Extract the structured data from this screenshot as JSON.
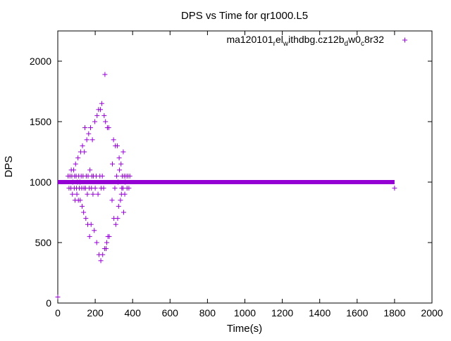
{
  "chart_data": {
    "type": "scatter",
    "title": "DPS vs Time for qr1000.L5",
    "xlabel": "Time(s)",
    "ylabel": "DPS",
    "xlim": [
      0,
      2000
    ],
    "ylim": [
      0,
      2250
    ],
    "xticks": [
      0,
      200,
      400,
      600,
      800,
      1000,
      1200,
      1400,
      1600,
      1800,
      2000
    ],
    "yticks": [
      0,
      500,
      1000,
      1500,
      2000
    ],
    "grid": false,
    "legend_position": "top-right",
    "marker": "+",
    "color": "#9400d3",
    "legend": {
      "base": "ma120101",
      "sub1": "r",
      "mid1": "el",
      "sub2": "w",
      "mid2": "ithdbg.cz12b",
      "sub3": "d",
      "mid3": "w0",
      "sub4": "c",
      "tail": "8r32"
    },
    "baseline": {
      "y": 1000,
      "x_start": 0,
      "x_end": 1800
    },
    "series": [
      {
        "name": "ma120101_rel_withdbg.cz12b_dw0_c8r32",
        "points": [
          [
            0,
            50
          ],
          [
            1800,
            950
          ],
          [
            55,
            1050
          ],
          [
            60,
            950
          ],
          [
            65,
            1050
          ],
          [
            70,
            950
          ],
          [
            72,
            1100
          ],
          [
            75,
            1050
          ],
          [
            78,
            900
          ],
          [
            80,
            1000
          ],
          [
            85,
            1100
          ],
          [
            88,
            950
          ],
          [
            90,
            1050
          ],
          [
            92,
            850
          ],
          [
            95,
            1150
          ],
          [
            98,
            1050
          ],
          [
            100,
            950
          ],
          [
            102,
            900
          ],
          [
            105,
            1000
          ],
          [
            108,
            1200
          ],
          [
            110,
            850
          ],
          [
            112,
            1050
          ],
          [
            115,
            950
          ],
          [
            118,
            1000
          ],
          [
            120,
            850
          ],
          [
            122,
            1250
          ],
          [
            125,
            1050
          ],
          [
            128,
            950
          ],
          [
            130,
            800
          ],
          [
            132,
            1300
          ],
          [
            135,
            1050
          ],
          [
            138,
            750
          ],
          [
            140,
            950
          ],
          [
            142,
            1250
          ],
          [
            145,
            1450
          ],
          [
            148,
            950
          ],
          [
            150,
            700
          ],
          [
            152,
            1050
          ],
          [
            155,
            1350
          ],
          [
            158,
            900
          ],
          [
            160,
            650
          ],
          [
            162,
            1050
          ],
          [
            165,
            1400
          ],
          [
            168,
            950
          ],
          [
            170,
            550
          ],
          [
            172,
            1100
          ],
          [
            175,
            1450
          ],
          [
            178,
            650
          ],
          [
            180,
            950
          ],
          [
            182,
            1050
          ],
          [
            185,
            1350
          ],
          [
            188,
            900
          ],
          [
            190,
            1050
          ],
          [
            195,
            600
          ],
          [
            198,
            1500
          ],
          [
            200,
            950
          ],
          [
            205,
            1050
          ],
          [
            208,
            500
          ],
          [
            210,
            1550
          ],
          [
            215,
            900
          ],
          [
            218,
            1600
          ],
          [
            220,
            400
          ],
          [
            225,
            1050
          ],
          [
            228,
            1600
          ],
          [
            230,
            350
          ],
          [
            232,
            950
          ],
          [
            235,
            1650
          ],
          [
            238,
            1050
          ],
          [
            240,
            400
          ],
          [
            245,
            950
          ],
          [
            248,
            1550
          ],
          [
            250,
            450
          ],
          [
            252,
            1890
          ],
          [
            255,
            1500
          ],
          [
            258,
            450
          ],
          [
            262,
            500
          ],
          [
            265,
            1450
          ],
          [
            268,
            550
          ],
          [
            272,
            1450
          ],
          [
            275,
            550
          ],
          [
            290,
            850
          ],
          [
            292,
            1150
          ],
          [
            298,
            1350
          ],
          [
            300,
            700
          ],
          [
            305,
            950
          ],
          [
            308,
            1300
          ],
          [
            310,
            650
          ],
          [
            315,
            1050
          ],
          [
            318,
            1300
          ],
          [
            320,
            700
          ],
          [
            322,
            1000
          ],
          [
            325,
            800
          ],
          [
            328,
            1200
          ],
          [
            330,
            1100
          ],
          [
            335,
            850
          ],
          [
            338,
            1150
          ],
          [
            340,
            900
          ],
          [
            342,
            950
          ],
          [
            345,
            1050
          ],
          [
            348,
            950
          ],
          [
            350,
            1250
          ],
          [
            352,
            750
          ],
          [
            355,
            1050
          ],
          [
            358,
            900
          ],
          [
            360,
            1000
          ],
          [
            365,
            1050
          ],
          [
            370,
            950
          ],
          [
            375,
            1050
          ],
          [
            380,
            950
          ],
          [
            385,
            1050
          ]
        ]
      }
    ]
  }
}
